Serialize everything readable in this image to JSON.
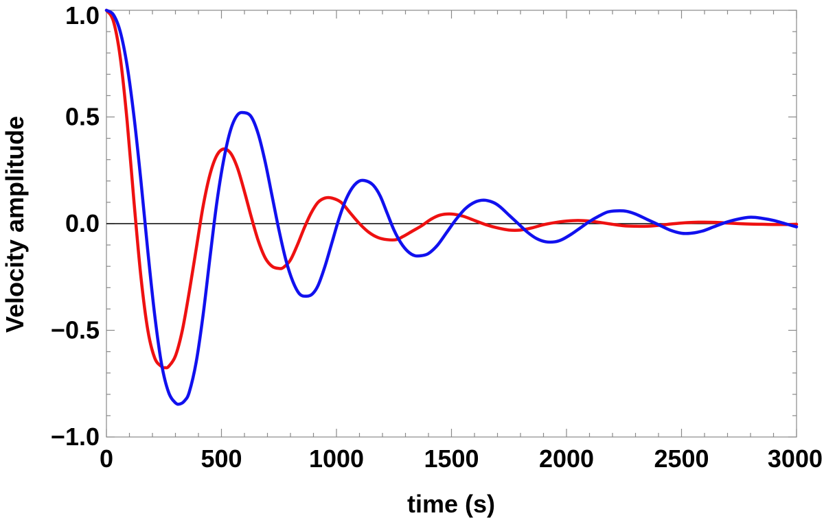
{
  "chart_data": {
    "type": "line",
    "title": "",
    "xlabel": "time (s)",
    "ylabel": "Velocity amplitude",
    "xlim": [
      0,
      3000
    ],
    "ylim": [
      -1.0,
      1.0
    ],
    "x_ticks": [
      0,
      500,
      1000,
      1500,
      2000,
      2500,
      3000
    ],
    "x_tick_labels": [
      "0",
      "500",
      "1000",
      "1500",
      "2000",
      "2500",
      "3000"
    ],
    "y_ticks": [
      -1.0,
      -0.5,
      0.0,
      0.5,
      1.0
    ],
    "y_tick_labels": [
      "−1.0",
      "−0.5",
      "0.0",
      "0.5",
      "1.0"
    ],
    "grid": false,
    "zero_line": true,
    "series": [
      {
        "color": "#ee1111",
        "x": [
          0,
          30,
          60,
          90,
          120,
          150,
          180,
          210,
          240,
          255,
          270,
          300,
          330,
          360,
          390,
          420,
          450,
          480,
          510,
          540,
          570,
          600,
          630,
          660,
          690,
          720,
          750,
          770,
          800,
          830,
          860,
          890,
          920,
          950,
          980,
          1020,
          1060,
          1100,
          1140,
          1180,
          1220,
          1260,
          1290,
          1330,
          1370,
          1410,
          1450,
          1500,
          1550,
          1600,
          1650,
          1700,
          1750,
          1800,
          1850,
          1900,
          1950,
          2000,
          2050,
          2100,
          2150,
          2200,
          2250,
          2300,
          2350,
          2400,
          2450,
          2500,
          2550,
          2600,
          2650,
          2700,
          2750,
          2800,
          2850,
          2900,
          2950,
          3000
        ],
        "values": [
          1.0,
          0.95,
          0.78,
          0.48,
          0.1,
          -0.25,
          -0.5,
          -0.63,
          -0.67,
          -0.675,
          -0.67,
          -0.62,
          -0.5,
          -0.32,
          -0.12,
          0.08,
          0.23,
          0.32,
          0.35,
          0.33,
          0.26,
          0.15,
          0.03,
          -0.08,
          -0.16,
          -0.2,
          -0.21,
          -0.205,
          -0.17,
          -0.1,
          -0.02,
          0.05,
          0.1,
          0.12,
          0.12,
          0.1,
          0.05,
          0.0,
          -0.04,
          -0.065,
          -0.075,
          -0.075,
          -0.06,
          -0.035,
          -0.01,
          0.02,
          0.04,
          0.045,
          0.035,
          0.015,
          -0.005,
          -0.02,
          -0.03,
          -0.03,
          -0.02,
          -0.005,
          0.005,
          0.012,
          0.015,
          0.012,
          0.005,
          -0.003,
          -0.01,
          -0.012,
          -0.012,
          -0.008,
          -0.002,
          0.003,
          0.006,
          0.007,
          0.006,
          0.003,
          0.0,
          -0.002,
          -0.003,
          -0.004,
          -0.004,
          -0.003
        ]
      },
      {
        "color": "#1111ee",
        "x": [
          0,
          30,
          60,
          90,
          120,
          150,
          180,
          210,
          240,
          270,
          300,
          320,
          340,
          360,
          390,
          420,
          450,
          480,
          510,
          540,
          570,
          600,
          630,
          660,
          690,
          720,
          750,
          780,
          810,
          840,
          870,
          895,
          920,
          950,
          980,
          1010,
          1040,
          1070,
          1100,
          1130,
          1160,
          1190,
          1220,
          1250,
          1280,
          1310,
          1340,
          1370,
          1400,
          1440,
          1480,
          1520,
          1560,
          1600,
          1640,
          1680,
          1710,
          1750,
          1790,
          1830,
          1870,
          1910,
          1950,
          1980,
          2020,
          2060,
          2100,
          2140,
          2180,
          2220,
          2260,
          2300,
          2350,
          2400,
          2450,
          2500,
          2540,
          2590,
          2640,
          2690,
          2740,
          2800,
          2850,
          2900,
          2950,
          3000
        ],
        "values": [
          1.0,
          0.98,
          0.9,
          0.74,
          0.5,
          0.2,
          -0.13,
          -0.43,
          -0.66,
          -0.79,
          -0.84,
          -0.845,
          -0.83,
          -0.79,
          -0.65,
          -0.43,
          -0.16,
          0.1,
          0.3,
          0.44,
          0.51,
          0.52,
          0.5,
          0.42,
          0.29,
          0.13,
          -0.03,
          -0.17,
          -0.27,
          -0.33,
          -0.34,
          -0.33,
          -0.29,
          -0.2,
          -0.09,
          0.02,
          0.11,
          0.17,
          0.2,
          0.2,
          0.18,
          0.13,
          0.05,
          -0.03,
          -0.09,
          -0.13,
          -0.15,
          -0.15,
          -0.14,
          -0.1,
          -0.04,
          0.02,
          0.07,
          0.1,
          0.11,
          0.1,
          0.08,
          0.04,
          0.0,
          -0.04,
          -0.07,
          -0.085,
          -0.085,
          -0.075,
          -0.05,
          -0.02,
          0.01,
          0.035,
          0.055,
          0.06,
          0.058,
          0.045,
          0.02,
          -0.005,
          -0.03,
          -0.045,
          -0.045,
          -0.035,
          -0.015,
          0.005,
          0.02,
          0.03,
          0.025,
          0.015,
          0.0,
          -0.015
        ]
      }
    ]
  }
}
